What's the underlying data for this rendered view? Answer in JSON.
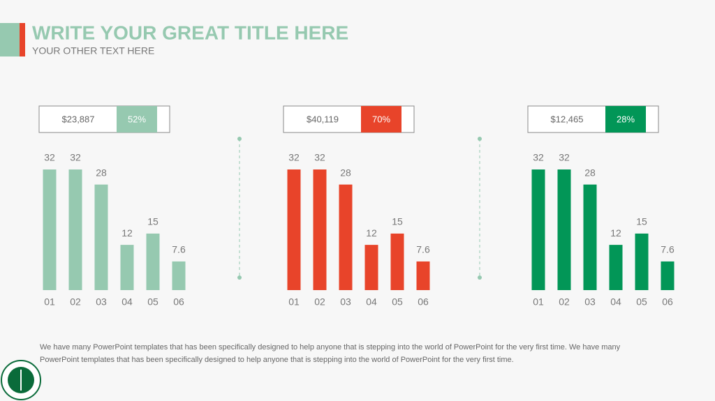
{
  "header": {
    "title": "WRITE YOUR GREAT TITLE HERE",
    "subtitle": "YOUR OTHER TEXT HERE"
  },
  "chart_data": [
    {
      "type": "bar",
      "amount": "$23,887",
      "share": "52%",
      "color": "#96c9b0",
      "categories": [
        "01",
        "02",
        "03",
        "04",
        "05",
        "06"
      ],
      "values": [
        32,
        32,
        28,
        12,
        15,
        7.6
      ]
    },
    {
      "type": "bar",
      "amount": "$40,119",
      "share": "70%",
      "color": "#e8442a",
      "categories": [
        "01",
        "02",
        "03",
        "04",
        "05",
        "06"
      ],
      "values": [
        32,
        32,
        28,
        12,
        15,
        7.6
      ]
    },
    {
      "type": "bar",
      "amount": "$12,465",
      "share": "28%",
      "color": "#029657",
      "categories": [
        "01",
        "02",
        "03",
        "04",
        "05",
        "06"
      ],
      "values": [
        32,
        32,
        28,
        12,
        15,
        7.6
      ]
    }
  ],
  "footer": {
    "text": "We have many PowerPoint templates that has been specifically designed to help anyone that is stepping into the world of PowerPoint for the very first time. We have many PowerPoint templates that has been specifically designed to help anyone that is stepping into the world of PowerPoint for the very first time."
  }
}
